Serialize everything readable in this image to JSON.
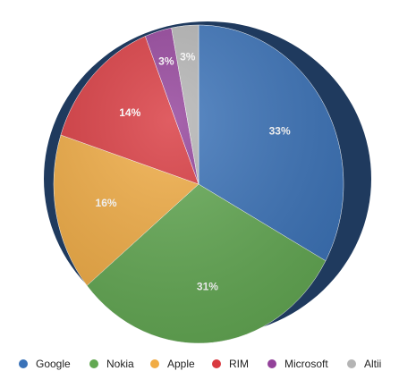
{
  "chart_data": {
    "type": "pie",
    "categories": [
      "Google",
      "Nokia",
      "Apple",
      "RIM",
      "Microsoft",
      "Altii"
    ],
    "values": [
      33,
      31,
      16,
      14,
      3,
      3
    ],
    "value_labels": [
      "33%",
      "31%",
      "16%",
      "14%",
      "3%",
      "3%"
    ],
    "colors": [
      "#3a72b8",
      "#62a852",
      "#f1ac44",
      "#d93a40",
      "#93429a",
      "#b4b4b4"
    ],
    "legend": "bottom"
  }
}
